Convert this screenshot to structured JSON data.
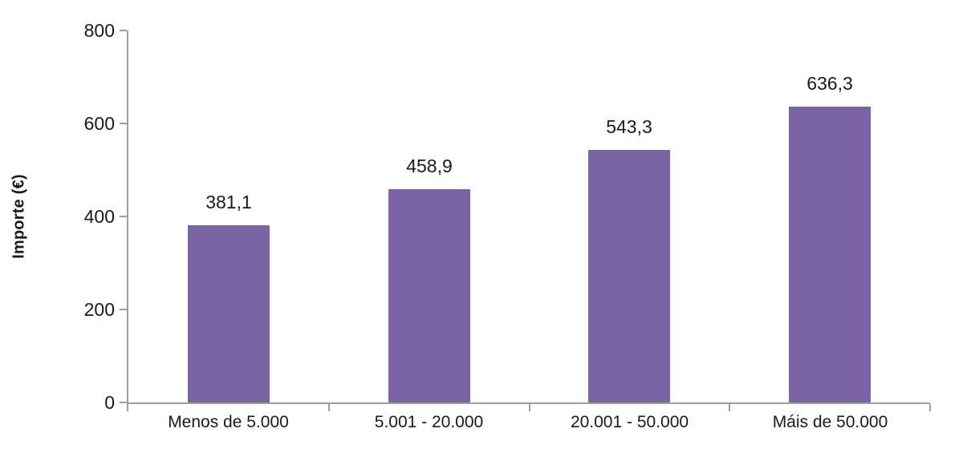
{
  "chart_data": {
    "type": "bar",
    "title": "",
    "categories": [
      "Menos de 5.000",
      "5.001 - 20.000",
      "20.001 - 50.000",
      "Máis de 50.000"
    ],
    "values": [
      381.1,
      458.9,
      543.3,
      636.3
    ],
    "value_labels": [
      "381,1",
      "458,9",
      "543,3",
      "636,3"
    ],
    "xlabel": "",
    "ylabel": "Importe (€)",
    "ylim": [
      0,
      800
    ],
    "yticks": [
      0,
      200,
      400,
      600,
      800
    ],
    "ytick_labels": [
      "0",
      "200",
      "400",
      "600",
      "800"
    ],
    "grid": false,
    "legend": false,
    "bar_color": "#7c64a4",
    "axis_color": "#9e9e9e",
    "text_color": "#1a1a1a",
    "background_color": "#ffffff"
  }
}
